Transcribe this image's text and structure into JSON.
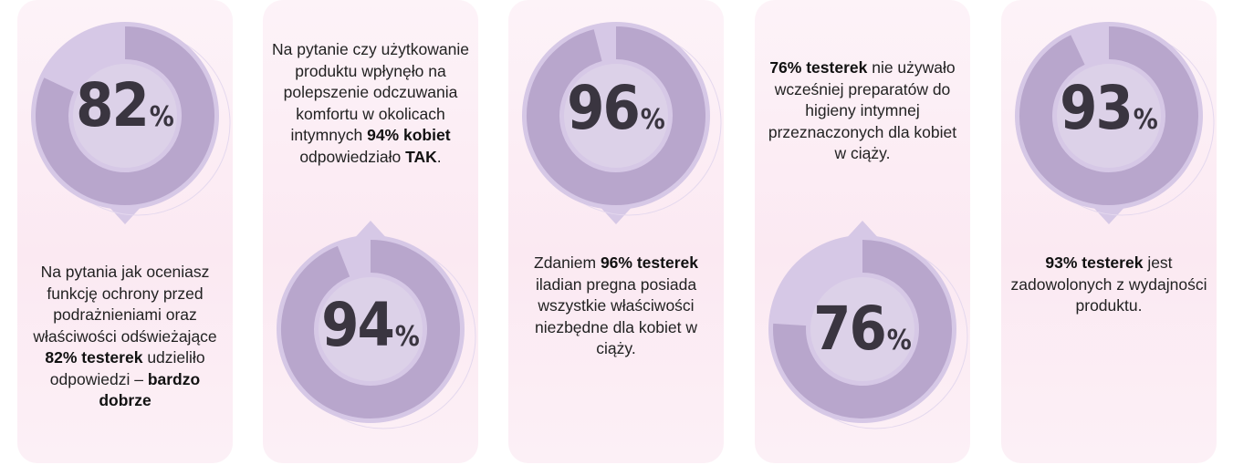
{
  "colors": {
    "card_bg": "#fcedf4",
    "badge_outer": "#d6c8e6",
    "badge_ring": "#b8a6cc",
    "badge_inner": "#dcd1e8",
    "number_text": "#3a3540"
  },
  "cards": [
    {
      "percent": 82,
      "number": "82",
      "sign": "%",
      "badge_position": "top",
      "text": [
        {
          "t": "Na pytania jak oceniasz funkcję ochrony przed podrażnieniami oraz właściwości odświeżające "
        },
        {
          "t": "82% testerek",
          "b": true
        },
        {
          "t": " udzieliło odpowiedzi – "
        },
        {
          "t": "bardzo dobrze",
          "b": true
        }
      ]
    },
    {
      "percent": 94,
      "number": "94",
      "sign": "%",
      "badge_position": "bottom",
      "text": [
        {
          "t": "Na pytanie czy użytkowanie produktu wpłynęło na polepszenie odczuwania komfortu w okolicach intymnych "
        },
        {
          "t": "94% kobiet",
          "b": true
        },
        {
          "t": " odpowiedziało "
        },
        {
          "t": "TAK",
          "b": true
        },
        {
          "t": "."
        }
      ]
    },
    {
      "percent": 96,
      "number": "96",
      "sign": "%",
      "badge_position": "top",
      "text": [
        {
          "t": "Zdaniem "
        },
        {
          "t": "96% testerek",
          "b": true
        },
        {
          "t": " iladian pregna posiada wszystkie właściwości niezbędne dla kobiet w ciąży."
        }
      ]
    },
    {
      "percent": 76,
      "number": "76",
      "sign": "%",
      "badge_position": "bottom",
      "text": [
        {
          "t": "76% testerek",
          "b": true
        },
        {
          "t": " nie używało wcześniej preparatów do higieny intymnej przeznaczonych dla kobiet w ciąży."
        }
      ]
    },
    {
      "percent": 93,
      "number": "93",
      "sign": "%",
      "badge_position": "top",
      "text": [
        {
          "t": "93% testerek",
          "b": true
        },
        {
          "t": " jest zadowolonych z wydajności produktu."
        }
      ]
    }
  ]
}
